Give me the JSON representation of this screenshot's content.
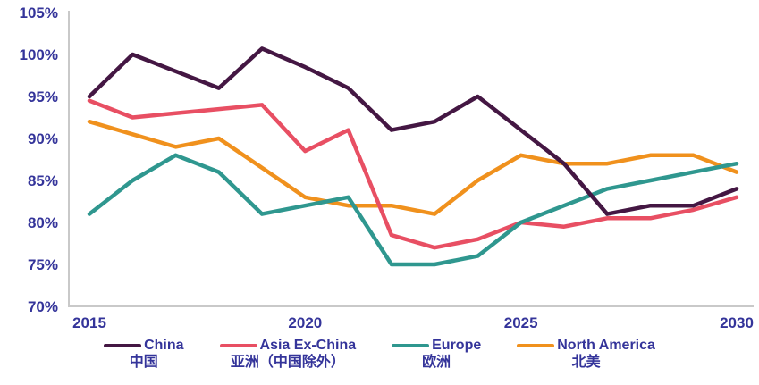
{
  "colors": {
    "background": "#ffffff",
    "axis_line": "#c9c9c9",
    "axis_text": "#34349a",
    "china": "#441743",
    "asia_ex_china": "#e84f63",
    "europe": "#2f978f",
    "north_america": "#f0911d"
  },
  "chart_data": {
    "type": "line",
    "title": "",
    "xlabel": "",
    "ylabel": "",
    "x": [
      2015,
      2016,
      2017,
      2018,
      2019,
      2020,
      2021,
      2022,
      2023,
      2024,
      2025,
      2026,
      2027,
      2028,
      2029,
      2030
    ],
    "x_tick_years": [
      2015,
      2020,
      2025,
      2030
    ],
    "x_tick_labels": [
      "2015",
      "2020",
      "2025",
      "2030"
    ],
    "y_ticks": [
      70,
      75,
      80,
      85,
      90,
      95,
      100,
      105
    ],
    "y_tick_labels": [
      "70%",
      "75%",
      "80%",
      "85%",
      "90%",
      "95%",
      "100%",
      "105%"
    ],
    "ylim": [
      70,
      105
    ],
    "grid": false,
    "legend_position": "bottom",
    "series": [
      {
        "name": "China",
        "name_zh": "中国",
        "color_key": "china",
        "values": [
          95,
          100,
          98,
          96,
          100.7,
          98.5,
          96,
          91,
          92,
          95,
          91,
          87,
          81,
          82,
          82,
          84
        ]
      },
      {
        "name": "Asia Ex-China",
        "name_zh": "亚洲（中国除外）",
        "color_key": "asia_ex_china",
        "values": [
          94.5,
          92.5,
          93,
          93.5,
          94,
          88.5,
          91,
          78.5,
          77,
          78,
          80,
          79.5,
          80.5,
          80.5,
          81.5,
          83
        ]
      },
      {
        "name": "Europe",
        "name_zh": "欧洲",
        "color_key": "europe",
        "values": [
          81,
          85,
          88,
          86,
          81,
          82,
          83,
          75,
          75,
          76,
          80,
          82,
          84,
          85,
          86,
          87
        ]
      },
      {
        "name": "North America",
        "name_zh": "北美",
        "color_key": "north_america",
        "values": [
          92,
          90.5,
          89,
          90,
          86.5,
          83,
          82,
          82,
          81,
          85,
          88,
          87,
          87,
          88,
          88,
          86
        ]
      }
    ],
    "draw_order": [
      3,
      1,
      2,
      0
    ]
  },
  "layout_values": {
    "plot": {
      "axis_x": 77,
      "baseline_y": 343,
      "x_first": 100,
      "x_last": 824,
      "y_top": 14,
      "axis_right": 843
    }
  }
}
